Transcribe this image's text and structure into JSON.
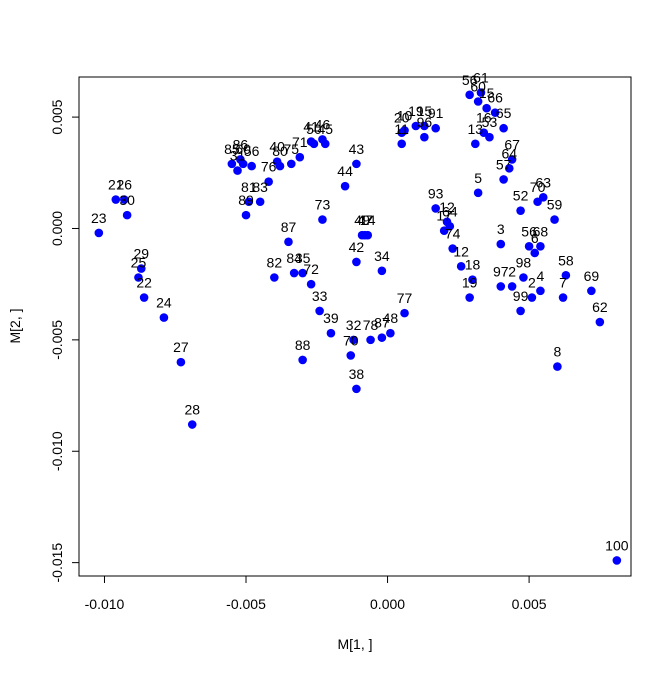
{
  "chart_data": {
    "type": "scatter",
    "title": "",
    "xlabel": "M[1, ]",
    "ylabel": "M[2, ]",
    "xlim": [
      -0.0109,
      0.0086
    ],
    "ylim": [
      -0.0156,
      0.0068
    ],
    "x_ticks": [
      -0.01,
      -0.005,
      0.0,
      0.005
    ],
    "x_tick_labels": [
      "-0.010",
      "-0.005",
      "0.000",
      "0.005"
    ],
    "y_ticks": [
      -0.015,
      -0.01,
      -0.005,
      0.0,
      0.005
    ],
    "y_tick_labels": [
      "-0.015",
      "-0.010",
      "-0.005",
      "0.000",
      "0.005"
    ],
    "grid": false,
    "point_color": "#0000ff",
    "label_color": "#000000",
    "points": [
      {
        "label": "23",
        "x": -0.0102,
        "y": -0.0002
      },
      {
        "label": "21",
        "x": -0.0096,
        "y": 0.0013
      },
      {
        "label": "26",
        "x": -0.0093,
        "y": 0.0013
      },
      {
        "label": "30",
        "x": -0.0092,
        "y": 0.0006
      },
      {
        "label": "29",
        "x": -0.0087,
        "y": -0.0018
      },
      {
        "label": "25",
        "x": -0.0088,
        "y": -0.0022
      },
      {
        "label": "22",
        "x": -0.0086,
        "y": -0.0031
      },
      {
        "label": "24",
        "x": -0.0079,
        "y": -0.004
      },
      {
        "label": "27",
        "x": -0.0073,
        "y": -0.006
      },
      {
        "label": "28",
        "x": -0.0069,
        "y": -0.0088
      },
      {
        "label": "85",
        "x": -0.0055,
        "y": 0.0029
      },
      {
        "label": "31",
        "x": -0.0053,
        "y": 0.0026
      },
      {
        "label": "86",
        "x": -0.0052,
        "y": 0.0031
      },
      {
        "label": "60",
        "x": -0.0051,
        "y": 0.0029
      },
      {
        "label": "56",
        "x": -0.0048,
        "y": 0.0028
      },
      {
        "label": "81",
        "x": -0.0049,
        "y": 0.0012
      },
      {
        "label": "89",
        "x": -0.005,
        "y": 0.0006
      },
      {
        "label": "83",
        "x": -0.0045,
        "y": 0.0012
      },
      {
        "label": "76",
        "x": -0.0042,
        "y": 0.0021
      },
      {
        "label": "40",
        "x": -0.0039,
        "y": 0.003
      },
      {
        "label": "80",
        "x": -0.0038,
        "y": 0.0028
      },
      {
        "label": "75",
        "x": -0.0034,
        "y": 0.0029
      },
      {
        "label": "71",
        "x": -0.0031,
        "y": 0.0032
      },
      {
        "label": "41",
        "x": -0.0027,
        "y": 0.0039
      },
      {
        "label": "50",
        "x": -0.0026,
        "y": 0.0038
      },
      {
        "label": "46",
        "x": -0.0023,
        "y": 0.004
      },
      {
        "label": "45",
        "x": -0.0022,
        "y": 0.0038
      },
      {
        "label": "43",
        "x": -0.0011,
        "y": 0.0029
      },
      {
        "label": "44",
        "x": -0.0015,
        "y": 0.0019
      },
      {
        "label": "73",
        "x": -0.0023,
        "y": 0.0004
      },
      {
        "label": "87",
        "x": -0.0035,
        "y": -0.0006
      },
      {
        "label": "82",
        "x": -0.004,
        "y": -0.0022
      },
      {
        "label": "84",
        "x": -0.0033,
        "y": -0.002
      },
      {
        "label": "35",
        "x": -0.003,
        "y": -0.002
      },
      {
        "label": "72",
        "x": -0.0027,
        "y": -0.0025
      },
      {
        "label": "33",
        "x": -0.0024,
        "y": -0.0037
      },
      {
        "label": "39",
        "x": -0.002,
        "y": -0.0047
      },
      {
        "label": "88",
        "x": -0.003,
        "y": -0.0059
      },
      {
        "label": "47",
        "x": -0.0008,
        "y": -0.0003
      },
      {
        "label": "49",
        "x": -0.0009,
        "y": -0.0003
      },
      {
        "label": "14",
        "x": -0.0007,
        "y": -0.0003
      },
      {
        "label": "42",
        "x": -0.0011,
        "y": -0.0015
      },
      {
        "label": "34",
        "x": -0.0002,
        "y": -0.0019
      },
      {
        "label": "32",
        "x": -0.0012,
        "y": -0.005
      },
      {
        "label": "70",
        "x": -0.0013,
        "y": -0.0057
      },
      {
        "label": "78",
        "x": -0.0006,
        "y": -0.005
      },
      {
        "label": "87",
        "x": -0.0002,
        "y": -0.0049
      },
      {
        "label": "48",
        "x": 0.0001,
        "y": -0.0047
      },
      {
        "label": "77",
        "x": 0.0006,
        "y": -0.0038
      },
      {
        "label": "38",
        "x": -0.0011,
        "y": -0.0072
      },
      {
        "label": "20",
        "x": 0.0005,
        "y": 0.0043
      },
      {
        "label": "10",
        "x": 0.0006,
        "y": 0.0044
      },
      {
        "label": "11",
        "x": 0.0005,
        "y": 0.0038
      },
      {
        "label": "19",
        "x": 0.001,
        "y": 0.0046
      },
      {
        "label": "15",
        "x": 0.0013,
        "y": 0.0046
      },
      {
        "label": "96",
        "x": 0.0013,
        "y": 0.0041
      },
      {
        "label": "91",
        "x": 0.0017,
        "y": 0.0045
      },
      {
        "label": "93",
        "x": 0.0017,
        "y": 0.0009
      },
      {
        "label": "12",
        "x": 0.0021,
        "y": 0.0003
      },
      {
        "label": "64",
        "x": 0.0022,
        "y": 0.0001
      },
      {
        "label": "17",
        "x": 0.002,
        "y": -0.0001
      },
      {
        "label": "74",
        "x": 0.0023,
        "y": -0.0009
      },
      {
        "label": "12",
        "x": 0.0026,
        "y": -0.0017
      },
      {
        "label": "18",
        "x": 0.003,
        "y": -0.0023
      },
      {
        "label": "19",
        "x": 0.0029,
        "y": -0.0031
      },
      {
        "label": "5",
        "x": 0.0032,
        "y": 0.0016
      },
      {
        "label": "56",
        "x": 0.0029,
        "y": 0.006
      },
      {
        "label": "61",
        "x": 0.0033,
        "y": 0.0061
      },
      {
        "label": "60",
        "x": 0.0032,
        "y": 0.0057
      },
      {
        "label": "15",
        "x": 0.0035,
        "y": 0.0054
      },
      {
        "label": "66",
        "x": 0.0038,
        "y": 0.0052
      },
      {
        "label": "16",
        "x": 0.0034,
        "y": 0.0043
      },
      {
        "label": "53",
        "x": 0.0036,
        "y": 0.0041
      },
      {
        "label": "13",
        "x": 0.0031,
        "y": 0.0038
      },
      {
        "label": "65",
        "x": 0.0041,
        "y": 0.0045
      },
      {
        "label": "67",
        "x": 0.0044,
        "y": 0.0031
      },
      {
        "label": "64",
        "x": 0.0043,
        "y": 0.0027
      },
      {
        "label": "57",
        "x": 0.0041,
        "y": 0.0022
      },
      {
        "label": "52",
        "x": 0.0047,
        "y": 0.0008
      },
      {
        "label": "70",
        "x": 0.0053,
        "y": 0.0012
      },
      {
        "label": "63",
        "x": 0.0055,
        "y": 0.0014
      },
      {
        "label": "59",
        "x": 0.0059,
        "y": 0.0004
      },
      {
        "label": "3",
        "x": 0.004,
        "y": -0.0007
      },
      {
        "label": "56",
        "x": 0.005,
        "y": -0.0008
      },
      {
        "label": "68",
        "x": 0.0054,
        "y": -0.0008
      },
      {
        "label": "6",
        "x": 0.0052,
        "y": -0.0011
      },
      {
        "label": "98",
        "x": 0.0048,
        "y": -0.0022
      },
      {
        "label": "97",
        "x": 0.004,
        "y": -0.0026
      },
      {
        "label": "2",
        "x": 0.0044,
        "y": -0.0026
      },
      {
        "label": "4",
        "x": 0.0054,
        "y": -0.0028
      },
      {
        "label": "2",
        "x": 0.0051,
        "y": -0.0031
      },
      {
        "label": "99",
        "x": 0.0047,
        "y": -0.0037
      },
      {
        "label": "58",
        "x": 0.0063,
        "y": -0.0021
      },
      {
        "label": "7",
        "x": 0.0062,
        "y": -0.0031
      },
      {
        "label": "69",
        "x": 0.0072,
        "y": -0.0028
      },
      {
        "label": "62",
        "x": 0.0075,
        "y": -0.0042
      },
      {
        "label": "8",
        "x": 0.006,
        "y": -0.0062
      },
      {
        "label": "100",
        "x": 0.0081,
        "y": -0.0149
      }
    ]
  }
}
